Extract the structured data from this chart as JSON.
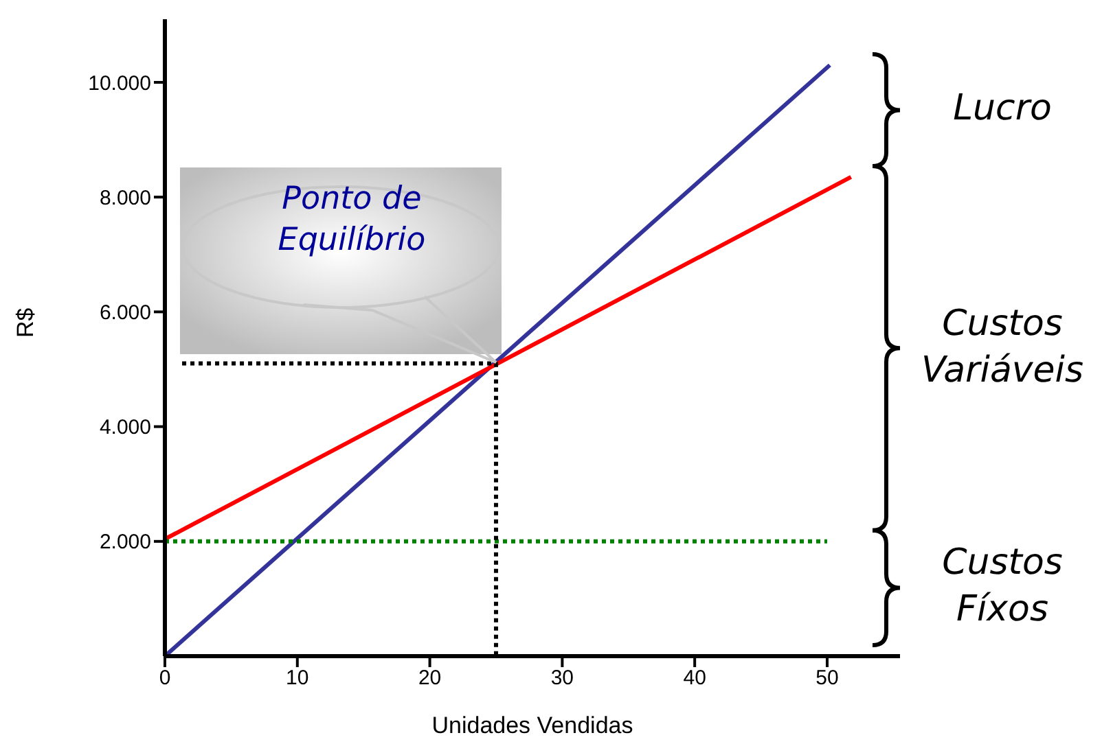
{
  "chart_data": {
    "type": "line",
    "xlabel": "Unidades Vendidas",
    "ylabel": "R$",
    "xlim": [
      0,
      55.5
    ],
    "xticks": [
      0,
      10,
      20,
      30,
      40,
      50
    ],
    "ylim": [
      0,
      11100
    ],
    "yticks": [
      {
        "value": 2000,
        "label": "2.000"
      },
      {
        "value": 4000,
        "label": "4.000"
      },
      {
        "value": 6000,
        "label": "6.000"
      },
      {
        "value": 8000,
        "label": "8.000"
      },
      {
        "value": 10000,
        "label": "10.000"
      }
    ],
    "marker": "none",
    "series": [
      {
        "color": "#333399",
        "x": [
          0,
          50.2
        ],
        "values": [
          0,
          10300
        ]
      },
      {
        "color": "#ff0000",
        "x": [
          0,
          51.8
        ],
        "values": [
          2040,
          8350
        ]
      },
      {
        "color": "#008000",
        "x": [
          0,
          50
        ],
        "values": [
          2000,
          2000
        ],
        "line_style": "dotted"
      },
      {
        "color": "#000000",
        "x": [
          1.3,
          25,
          25
        ],
        "values": [
          5100,
          5100,
          0
        ],
        "line_style": "dotted"
      }
    ],
    "annotations": [
      "Ponto de Equilíbrio",
      "Lucro",
      "Custos Variáveis",
      "Custos Fíxos"
    ]
  }
}
